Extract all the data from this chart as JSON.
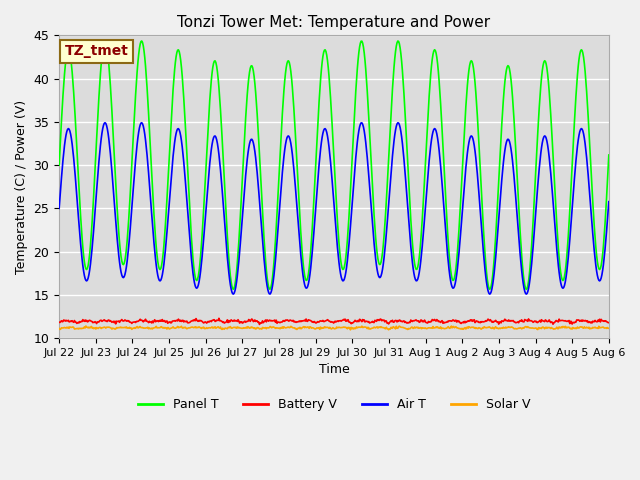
{
  "title": "Tonzi Tower Met: Temperature and Power",
  "xlabel": "Time",
  "ylabel": "Temperature (C) / Power (V)",
  "ylim": [
    10,
    45
  ],
  "annotation_text": "TZ_tmet",
  "annotation_color": "#8B0000",
  "annotation_bg": "#FFFFD0",
  "annotation_border": "#8B6914",
  "bg_color": "#DCDCDC",
  "fig_bg": "#F0F0F0",
  "grid_color": "#FFFFFF",
  "panel_t_color": "#00FF00",
  "battery_v_color": "#FF0000",
  "air_t_color": "#0000FF",
  "solar_v_color": "#FFA500",
  "xtick_labels": [
    "Jul 22",
    "Jul 23",
    "Jul 24",
    "Jul 25",
    "Jul 26",
    "Jul 27",
    "Jul 28",
    "Jul 29",
    "Jul 30",
    "Jul 31",
    "Aug 1",
    "Aug 2",
    "Aug 3",
    "Aug 4",
    "Aug 5",
    "Aug 6"
  ],
  "legend_labels": [
    "Panel T",
    "Battery V",
    "Air T",
    "Solar V"
  ],
  "num_days": 15,
  "points_per_day": 48
}
